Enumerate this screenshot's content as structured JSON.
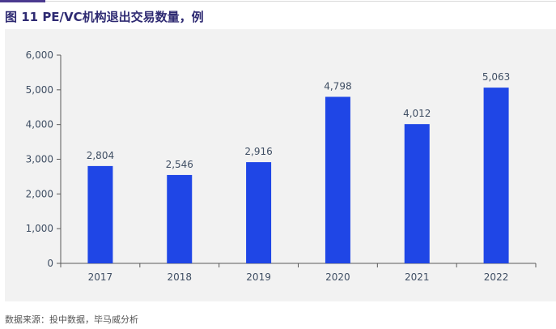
{
  "title": "图 11  PE/VC机构退出交易数量，例",
  "source": "数据来源：投中数据，毕马威分析",
  "colors": {
    "bar": "#1f46e6",
    "title": "#2e2a72",
    "panel": "#f2f2f2"
  },
  "chart_data": {
    "type": "bar",
    "title": "",
    "xlabel": "",
    "ylabel": "",
    "categories": [
      "2017",
      "2018",
      "2019",
      "2020",
      "2021",
      "2022"
    ],
    "values": [
      2804,
      2546,
      2916,
      4798,
      4012,
      5063
    ],
    "value_labels": [
      "2,804",
      "2,546",
      "2,916",
      "4,798",
      "4,012",
      "5,063"
    ],
    "ylim": [
      0,
      6000
    ],
    "yticks": [
      0,
      1000,
      2000,
      3000,
      4000,
      5000,
      6000
    ],
    "ytick_labels": [
      "0",
      "1,000",
      "2,000",
      "3,000",
      "4,000",
      "5,000",
      "6,000"
    ],
    "grid": false,
    "legend": "none"
  }
}
